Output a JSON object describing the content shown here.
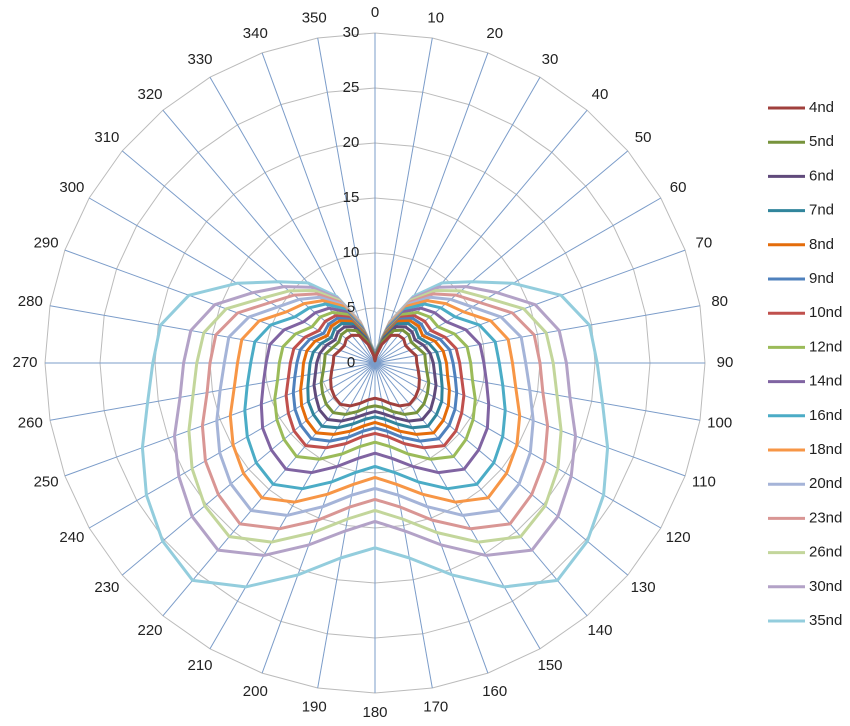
{
  "chart_data": {
    "type": "radar",
    "categories": [
      "0",
      "10",
      "20",
      "30",
      "40",
      "50",
      "60",
      "70",
      "80",
      "90",
      "100",
      "110",
      "120",
      "130",
      "140",
      "150",
      "160",
      "170",
      "180",
      "190",
      "200",
      "210",
      "220",
      "230",
      "240",
      "250",
      "260",
      "270",
      "280",
      "290",
      "300",
      "310",
      "320",
      "330",
      "340",
      "350"
    ],
    "rlim": [
      0,
      30
    ],
    "rticks": [
      0,
      5,
      10,
      15,
      20,
      25,
      30
    ],
    "grid": true,
    "legend": "right",
    "series": [
      {
        "name": "4nd",
        "color": "#a0403d",
        "values": [
          0.2,
          0.7,
          1.8,
          2.9,
          3.3,
          3.4,
          3.2,
          3.4,
          3.8,
          3.8,
          4,
          4.3,
          4.6,
          4.8,
          4.9,
          4.5,
          3.9,
          3.4,
          3.2,
          3.4,
          3.9,
          4.5,
          4.9,
          4.8,
          4.6,
          4.3,
          4,
          3.8,
          3.8,
          3.4,
          3.2,
          3.4,
          3.3,
          2.9,
          1.8,
          0.7
        ]
      },
      {
        "name": "5nd",
        "color": "#77933c",
        "values": [
          0.2,
          0.8,
          2.1,
          3.4,
          3.9,
          4,
          3.8,
          4.1,
          4.6,
          4.6,
          4.8,
          5.2,
          5.5,
          5.8,
          5.9,
          5.4,
          4.7,
          4.1,
          3.9,
          4.1,
          4.7,
          5.4,
          5.9,
          5.8,
          5.5,
          5.2,
          4.8,
          4.6,
          4.6,
          4.1,
          3.8,
          4,
          3.9,
          3.4,
          2.1,
          0.8
        ]
      },
      {
        "name": "6nd",
        "color": "#604a7b",
        "values": [
          0.3,
          0.9,
          2.3,
          3.8,
          4.3,
          4.4,
          4.2,
          4.7,
          5.1,
          5.3,
          5.5,
          5.9,
          6.2,
          6.6,
          6.7,
          6.1,
          5.3,
          4.7,
          4.4,
          4.7,
          5.3,
          6.1,
          6.7,
          6.6,
          6.2,
          5.9,
          5.5,
          5.3,
          5.1,
          4.7,
          4.2,
          4.4,
          4.3,
          3.8,
          2.3,
          0.9
        ]
      },
      {
        "name": "7nd",
        "color": "#31859c",
        "values": [
          0.3,
          1,
          2.5,
          4.1,
          4.7,
          4.8,
          4.6,
          5.2,
          5.7,
          5.9,
          6.1,
          6.5,
          7,
          7.3,
          7.5,
          6.8,
          5.9,
          5.2,
          4.9,
          5.2,
          5.9,
          6.8,
          7.5,
          7.3,
          7,
          6.5,
          6.1,
          5.9,
          5.7,
          5.2,
          4.6,
          4.8,
          4.7,
          4.1,
          2.5,
          1
        ]
      },
      {
        "name": "8nd",
        "color": "#e46c0a",
        "values": [
          0.3,
          1,
          2.7,
          4.4,
          5,
          5.2,
          5,
          5.8,
          6.3,
          6.5,
          6.7,
          7.2,
          7.7,
          8.1,
          8.3,
          7.5,
          6.6,
          5.8,
          5.4,
          5.8,
          6.6,
          7.5,
          8.3,
          8.1,
          7.7,
          7.2,
          6.7,
          6.5,
          6.3,
          5.8,
          5,
          5.2,
          5,
          4.4,
          2.7,
          1
        ]
      },
      {
        "name": "9nd",
        "color": "#4f81bd",
        "values": [
          0.3,
          1.1,
          2.8,
          4.6,
          5.3,
          5.5,
          5.4,
          6.3,
          6.9,
          7.1,
          7.4,
          7.9,
          8.4,
          8.8,
          9,
          8.2,
          7.2,
          6.3,
          5.9,
          6.3,
          7.2,
          8.2,
          9,
          8.8,
          8.4,
          7.9,
          7.4,
          7.1,
          6.9,
          6.3,
          5.4,
          5.5,
          5.3,
          4.6,
          2.8,
          1.1
        ]
      },
      {
        "name": "10nd",
        "color": "#c0504d",
        "values": [
          0.3,
          1.1,
          2.9,
          4.8,
          5.6,
          5.9,
          5.9,
          6.8,
          7.5,
          7.7,
          8,
          8.6,
          9.1,
          9.6,
          9.8,
          8.9,
          7.8,
          6.8,
          6.4,
          6.8,
          7.8,
          8.9,
          9.8,
          9.6,
          9.1,
          8.6,
          8,
          7.7,
          7.5,
          6.8,
          5.9,
          5.9,
          5.6,
          4.8,
          2.9,
          1.1
        ]
      },
      {
        "name": "12nd",
        "color": "#9bbb59",
        "values": [
          0.4,
          1.2,
          3.1,
          5.1,
          6,
          6.5,
          6.6,
          7.7,
          8.5,
          8.7,
          9,
          9.7,
          10.3,
          10.8,
          11.1,
          10.1,
          8.8,
          7.7,
          7.2,
          7.7,
          8.8,
          10.1,
          11.1,
          10.8,
          10.3,
          9.7,
          9,
          8.7,
          8.5,
          7.7,
          6.6,
          6.5,
          6,
          5.1,
          3.1,
          1.2
        ]
      },
      {
        "name": "14nd",
        "color": "#8064a2",
        "values": [
          0.4,
          1.2,
          3.3,
          5.4,
          6.5,
          7.1,
          7.5,
          8.8,
          9.7,
          9.9,
          10.3,
          11,
          11.8,
          12.3,
          12.6,
          11.5,
          10,
          8.8,
          8.2,
          8.8,
          10,
          11.5,
          12.6,
          12.3,
          11.8,
          11,
          10.3,
          9.9,
          9.7,
          8.8,
          7.5,
          7.1,
          6.5,
          5.4,
          3.3,
          1.2
        ]
      },
      {
        "name": "16nd",
        "color": "#4bacc6",
        "values": [
          0.4,
          1.3,
          3.5,
          5.7,
          7,
          7.8,
          8.4,
          10.1,
          11.1,
          11.3,
          11.8,
          12.6,
          13.4,
          14.1,
          14.4,
          13.2,
          11.5,
          10.1,
          9.4,
          10.1,
          11.5,
          13.2,
          14.4,
          14.1,
          13.4,
          12.6,
          11.8,
          11.3,
          11.1,
          10.1,
          8.4,
          7.8,
          7,
          5.7,
          3.5,
          1.3
        ]
      },
      {
        "name": "18nd",
        "color": "#f79646",
        "values": [
          0.4,
          1.3,
          3.6,
          6,
          7.4,
          8.4,
          9.3,
          11.2,
          12.3,
          12.5,
          13,
          14,
          14.9,
          15.6,
          16,
          14.6,
          12.7,
          11.2,
          10.4,
          11.2,
          12.7,
          14.6,
          16,
          15.6,
          14.9,
          14,
          13,
          12.5,
          12.3,
          11.2,
          9.3,
          8.4,
          7.4,
          6,
          3.6,
          1.3
        ]
      },
      {
        "name": "20nd",
        "color": "#a5b4d8",
        "values": [
          0.5,
          1.4,
          3.7,
          6.2,
          7.8,
          9,
          10.2,
          12.2,
          13.5,
          13.7,
          14.3,
          15.3,
          16.3,
          17.1,
          17.5,
          16,
          13.9,
          12.2,
          11.4,
          12.2,
          13.9,
          16,
          17.5,
          17.1,
          16.3,
          15.3,
          14.3,
          13.7,
          13.5,
          12.2,
          10.2,
          9,
          7.8,
          6.2,
          3.7,
          1.4
        ]
      },
      {
        "name": "23nd",
        "color": "#d99694",
        "values": [
          0.5,
          1.4,
          3.8,
          6.4,
          8.2,
          9.6,
          11,
          13.3,
          14.7,
          15,
          15.5,
          16.7,
          17.8,
          18.6,
          19.1,
          17.4,
          15.2,
          13.3,
          12.4,
          13.3,
          15.2,
          17.4,
          19.1,
          18.6,
          17.8,
          16.7,
          15.5,
          15,
          14.7,
          13.3,
          11,
          9.6,
          8.2,
          6.4,
          3.8,
          1.4
        ]
      },
      {
        "name": "26nd",
        "color": "#c3d69b",
        "values": [
          0.5,
          1.5,
          3.9,
          6.6,
          8.6,
          10.2,
          11.8,
          14.4,
          15.8,
          16.2,
          16.8,
          18,
          19.2,
          20.2,
          20.6,
          18.8,
          16.4,
          14.4,
          13.4,
          14.4,
          16.4,
          18.8,
          20.6,
          20.2,
          19.2,
          18,
          16.8,
          16.2,
          15.8,
          14.4,
          11.8,
          10.2,
          8.6,
          6.6,
          3.9,
          1.5
        ]
      },
      {
        "name": "30nd",
        "color": "#b3a2c7",
        "values": [
          0.5,
          1.5,
          4,
          6.8,
          9,
          10.8,
          12.8,
          15.5,
          17,
          17.4,
          18,
          19.4,
          20.6,
          21.7,
          22.2,
          20.2,
          17.6,
          15.5,
          14.4,
          15.5,
          17.6,
          20.2,
          22.2,
          21.7,
          20.6,
          19.4,
          18,
          17.4,
          17,
          15.5,
          12.8,
          10.8,
          9,
          6.8,
          4,
          1.5
        ]
      },
      {
        "name": "35nd",
        "color": "#93cddd",
        "values": [
          0.5,
          1.5,
          4,
          7,
          9.5,
          11.5,
          14.5,
          18,
          19.8,
          20.2,
          21,
          22.5,
          24,
          25.2,
          25.8,
          23.5,
          20.5,
          18,
          16.8,
          18,
          20.5,
          23.5,
          25.8,
          25.2,
          24,
          22.5,
          21,
          20.2,
          19.8,
          18,
          14.5,
          11.5,
          9.5,
          7,
          4,
          1.5
        ]
      }
    ]
  }
}
